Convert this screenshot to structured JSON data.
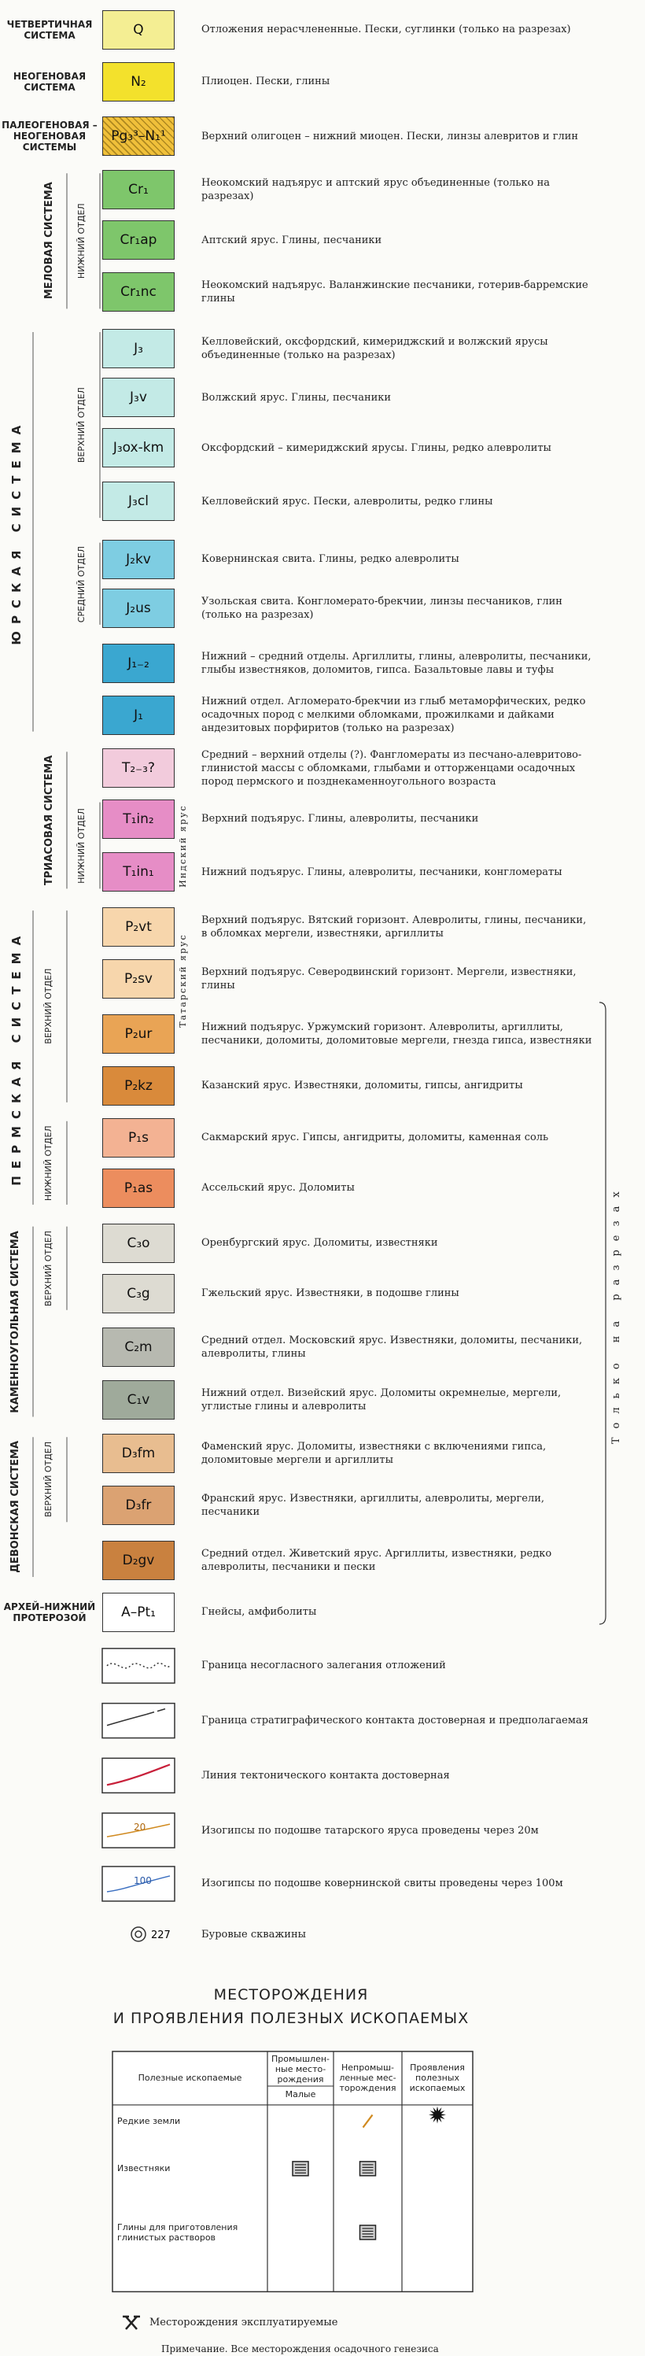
{
  "units": [
    {
      "code": "Q",
      "color": "#f4ee93",
      "description": "Отложения нерасчлененные. Пески, суглинки (только на разрезах)"
    },
    {
      "code": "N₂",
      "color": "#f3e12c",
      "description": "Плиоцен. Пески, глины"
    },
    {
      "code": "Pg₃³–N₁¹",
      "color": "#f0c03a",
      "description": "Верхний олигоцен – нижний миоцен. Пески, линзы алевритов и глин"
    },
    {
      "code": "Cr₁",
      "color": "#7ec66b",
      "description": "Неокомский надъярус и аптский ярус объединенные (только на разрезах)"
    },
    {
      "code": "Cr₁ap",
      "color": "#7ec66b",
      "description": "Аптский ярус. Глины, песчаники"
    },
    {
      "code": "Cr₁nc",
      "color": "#7ec66b",
      "description": "Неокомский надъярус. Валанжинские песчаники, готерив-барремские глины"
    },
    {
      "code": "J₃",
      "color": "#c3eae6",
      "description": "Келловейский, оксфордский, кимериджский и волжский ярусы объединенные (только на разрезах)"
    },
    {
      "code": "J₃v",
      "color": "#c3eae6",
      "description": "Волжский ярус. Глины, песчаники"
    },
    {
      "code": "J₃ox-km",
      "color": "#c3eae6",
      "description": "Оксфордский – кимериджский ярусы. Глины, редко алевролиты"
    },
    {
      "code": "J₃cl",
      "color": "#c3eae6",
      "description": "Келловейский ярус. Пески, алевролиты, редко глины"
    },
    {
      "code": "J₂kv",
      "color": "#7ecde2",
      "description": "Ковернинская свита. Глины, редко алевролиты"
    },
    {
      "code": "J₂us",
      "color": "#7ecde2",
      "description": "Узольская свита. Конгломерато-брекчии, линзы песчаников, глин (только на разрезах)"
    },
    {
      "code": "J₁₋₂",
      "color": "#3aa7d0",
      "description": "Нижний – средний отделы. Аргиллиты, глины, алевролиты, песчаники, глыбы известняков, доломитов, гипса. Базальтовые лавы и туфы"
    },
    {
      "code": "J₁",
      "color": "#3aa7d0",
      "description": "Нижний отдел. Агломерато-брекчии из глыб метаморфических, редко осадочных пород с мелкими обломками, прожилками и дайками андезитовых порфиритов (только на разрезах)"
    },
    {
      "code": "T₂₋₃?",
      "color": "#f2cbdc",
      "description": "Средний – верхний отделы (?). Фангломераты из песчано-алевритово-глинистой массы с обломками, глыбами и отторженцами осадочных пород пермского и позднекаменноугольного возраста"
    },
    {
      "code": "T₁in₂",
      "color": "#e68dc6",
      "description": "Верхний подъярус. Глины, алевролиты, песчаники"
    },
    {
      "code": "T₁in₁",
      "color": "#e68dc6",
      "description": "Нижний подъярус. Глины, алевролиты, песчаники, конгломераты"
    },
    {
      "code": "P₂vt",
      "color": "#f7d6ac",
      "description": "Верхний подъярус. Вятский горизонт. Алевролиты, глины, песчаники, в обломках мергели, известняки, аргиллиты"
    },
    {
      "code": "P₂sv",
      "color": "#f7d6ac",
      "description": "Верхний подъярус. Северодвинский горизонт. Мергели, известняки, глины"
    },
    {
      "code": "P₂ur",
      "color": "#e9a455",
      "description": "Нижний подъярус. Уржумский горизонт. Алевролиты, аргиллиты, песчаники, доломиты, доломитовые мергели, гнезда гипса, известняки"
    },
    {
      "code": "P₂kz",
      "color": "#d98a3b",
      "description": "Казанский ярус. Известняки, доломиты, гипсы, ангидриты"
    },
    {
      "code": "P₁s",
      "color": "#f3b293",
      "description": "Сакмарский ярус. Гипсы, ангидриты, доломиты, каменная соль"
    },
    {
      "code": "P₁as",
      "color": "#ec8d5e",
      "description": "Ассельский ярус. Доломиты"
    },
    {
      "code": "C₃o",
      "color": "#dddbd2",
      "description": "Оренбургский ярус. Доломиты, известняки"
    },
    {
      "code": "C₃g",
      "color": "#dddbd2",
      "description": "Гжельский ярус. Известняки, в подошве глины"
    },
    {
      "code": "C₂m",
      "color": "#b7b9b0",
      "description": "Средний отдел. Московский ярус. Известняки, доломиты, песчаники, алевролиты, глины"
    },
    {
      "code": "C₁v",
      "color": "#9faa9b",
      "description": "Нижний отдел. Визейский ярус. Доломиты окремнелые, мергели, углистые глины и алевролиты"
    },
    {
      "code": "D₃fm",
      "color": "#e8bd90",
      "description": "Фаменский ярус. Доломиты, известняки с включениями гипса, доломитовые мергели и аргиллиты"
    },
    {
      "code": "D₃fr",
      "color": "#dba272",
      "description": "Франский ярус. Известняки, аргиллиты, алевролиты, мергели, песчаники"
    },
    {
      "code": "D₂gv",
      "color": "#c9813f",
      "description": "Средний отдел. Живетский ярус. Аргиллиты, известняки, редко алевролиты, песчаники и пески"
    },
    {
      "code": "A–Pt₁",
      "color": "#ffffff",
      "description": "Гнейсы, амфиболиты"
    }
  ],
  "column_labels": [
    "ЧЕТВЕРТИЧНАЯ СИСТЕМА",
    "НЕОГЕНОВАЯ СИСТЕМА",
    "ПАЛЕОГЕНОВАЯ – НЕОГЕНОВАЯ СИСТЕМЫ",
    "МЕЛОВАЯ СИСТЕМА",
    "НИЖНИЙ ОТДЕЛ",
    "ЮРСКАЯ СИСТЕМА",
    "ВЕРХНИЙ ОТДЕЛ",
    "СРЕДНИЙ ОТДЕЛ",
    "ТРИАСОВАЯ СИСТЕМА",
    "НИЖНИЙ ОТДЕЛ",
    "Индский ярус",
    "ПЕРМСКАЯ СИСТЕМА",
    "ВЕРХНИЙ ОТДЕЛ",
    "Татарский ярус",
    "НИЖНИЙ ОТДЕЛ",
    "КАМЕННОУГОЛЬНАЯ СИСТЕМА",
    "ВЕРХНИЙ ОТДЕЛ",
    "ДЕВОНСКАЯ СИСТЕМА",
    "ВЕРХНИЙ ОТДЕЛ",
    "АРХЕЙ–НИЖНИЙ ПРОТЕРОЗОЙ"
  ],
  "bracket_label": "Только на разрезах",
  "symbols": [
    "Граница несогласного залегания отложений",
    "Граница стратиграфического контакта достоверная и предполагаемая",
    "Линия тектонического контакта достоверная",
    "Изогипсы по подошве татарского яруса проведены через 20м",
    "Изогипсы по подошве ковернинской свиты проведены через 100м"
  ],
  "isohypse_marks": [
    "20",
    "100"
  ],
  "borehole": {
    "number": "227",
    "label": "Буровые скважины"
  },
  "deposits": {
    "title": [
      "МЕСТОРОЖДЕНИЯ",
      "И ПРОЯВЛЕНИЯ ПОЛЕЗНЫХ ИСКОПАЕМЫХ"
    ],
    "columns": [
      "Полезные ископаемые",
      "Промышлен-ные место-рождения",
      "Непромыш-ленные мес-торождения",
      "Проявления полезных ископаемых"
    ],
    "subcolumn": "Малые",
    "rows": [
      "Редкие земли",
      "Известняки",
      "Глины для приготовления глинистых растворов"
    ],
    "exploited": "Месторождения эксплуатируемые",
    "note": "Примечание. Все месторождения осадочного генезиса"
  }
}
